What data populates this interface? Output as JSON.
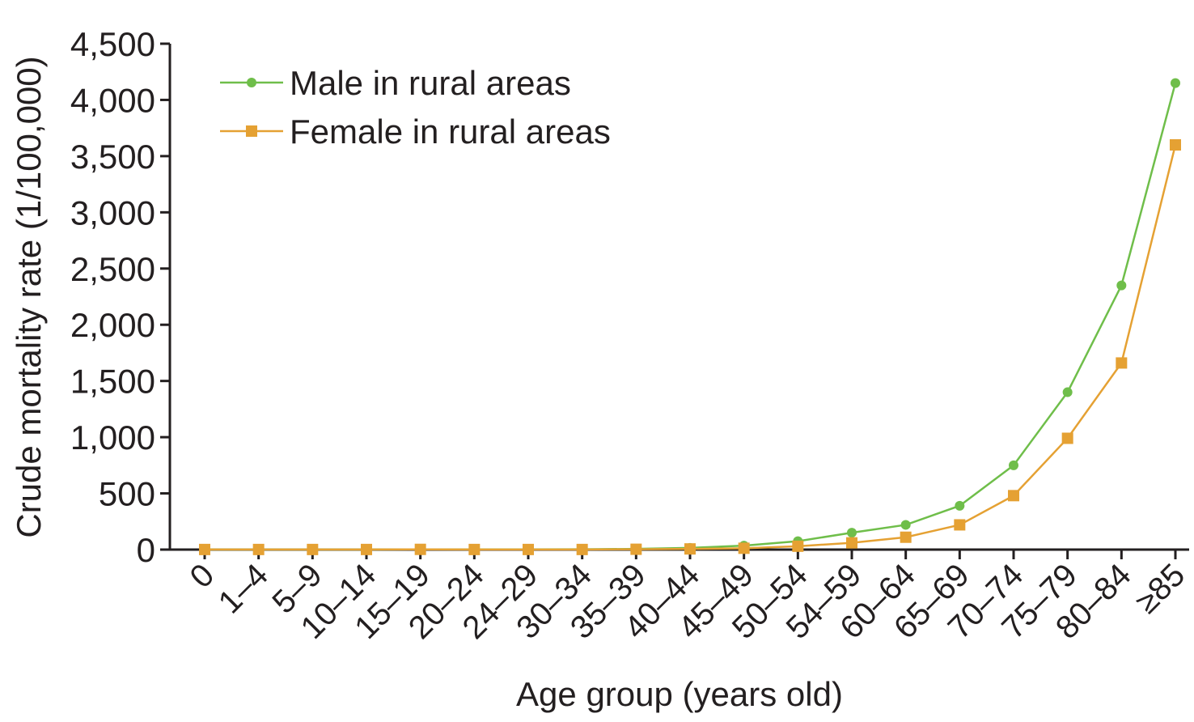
{
  "chart_data": {
    "type": "line",
    "title": "",
    "xlabel": "Age group (years old)",
    "ylabel": "Crude mortality rate (1/100,000)",
    "ylim": [
      0,
      4500
    ],
    "yticks": [
      0,
      500,
      1000,
      1500,
      2000,
      2500,
      3000,
      3500,
      4000,
      4500
    ],
    "ytick_labels": [
      "0",
      "500",
      "1,000",
      "1,500",
      "2,000",
      "2,500",
      "3,000",
      "3,500",
      "4,000",
      "4,500"
    ],
    "categories": [
      "0",
      "1–4",
      "5–9",
      "10–14",
      "15–19",
      "20–24",
      "24–29",
      "30–34",
      "35–39",
      "40–44",
      "45–49",
      "50–54",
      "54–59",
      "60–64",
      "65–69",
      "70–74",
      "75–79",
      "80–84",
      "≥85"
    ],
    "grid": false,
    "legend_position": "top-left",
    "series": [
      {
        "name": "Male in rural areas",
        "color": "#6fbe4a",
        "marker": "circle",
        "values": [
          1,
          1,
          1,
          1,
          2,
          2,
          2,
          3,
          6,
          15,
          35,
          75,
          150,
          220,
          390,
          750,
          1400,
          2350,
          4150
        ]
      },
      {
        "name": "Female in rural areas",
        "color": "#e5a133",
        "marker": "square",
        "values": [
          1,
          1,
          1,
          1,
          2,
          1,
          1,
          1,
          3,
          6,
          12,
          30,
          60,
          110,
          220,
          480,
          990,
          1660,
          3600
        ]
      }
    ]
  }
}
